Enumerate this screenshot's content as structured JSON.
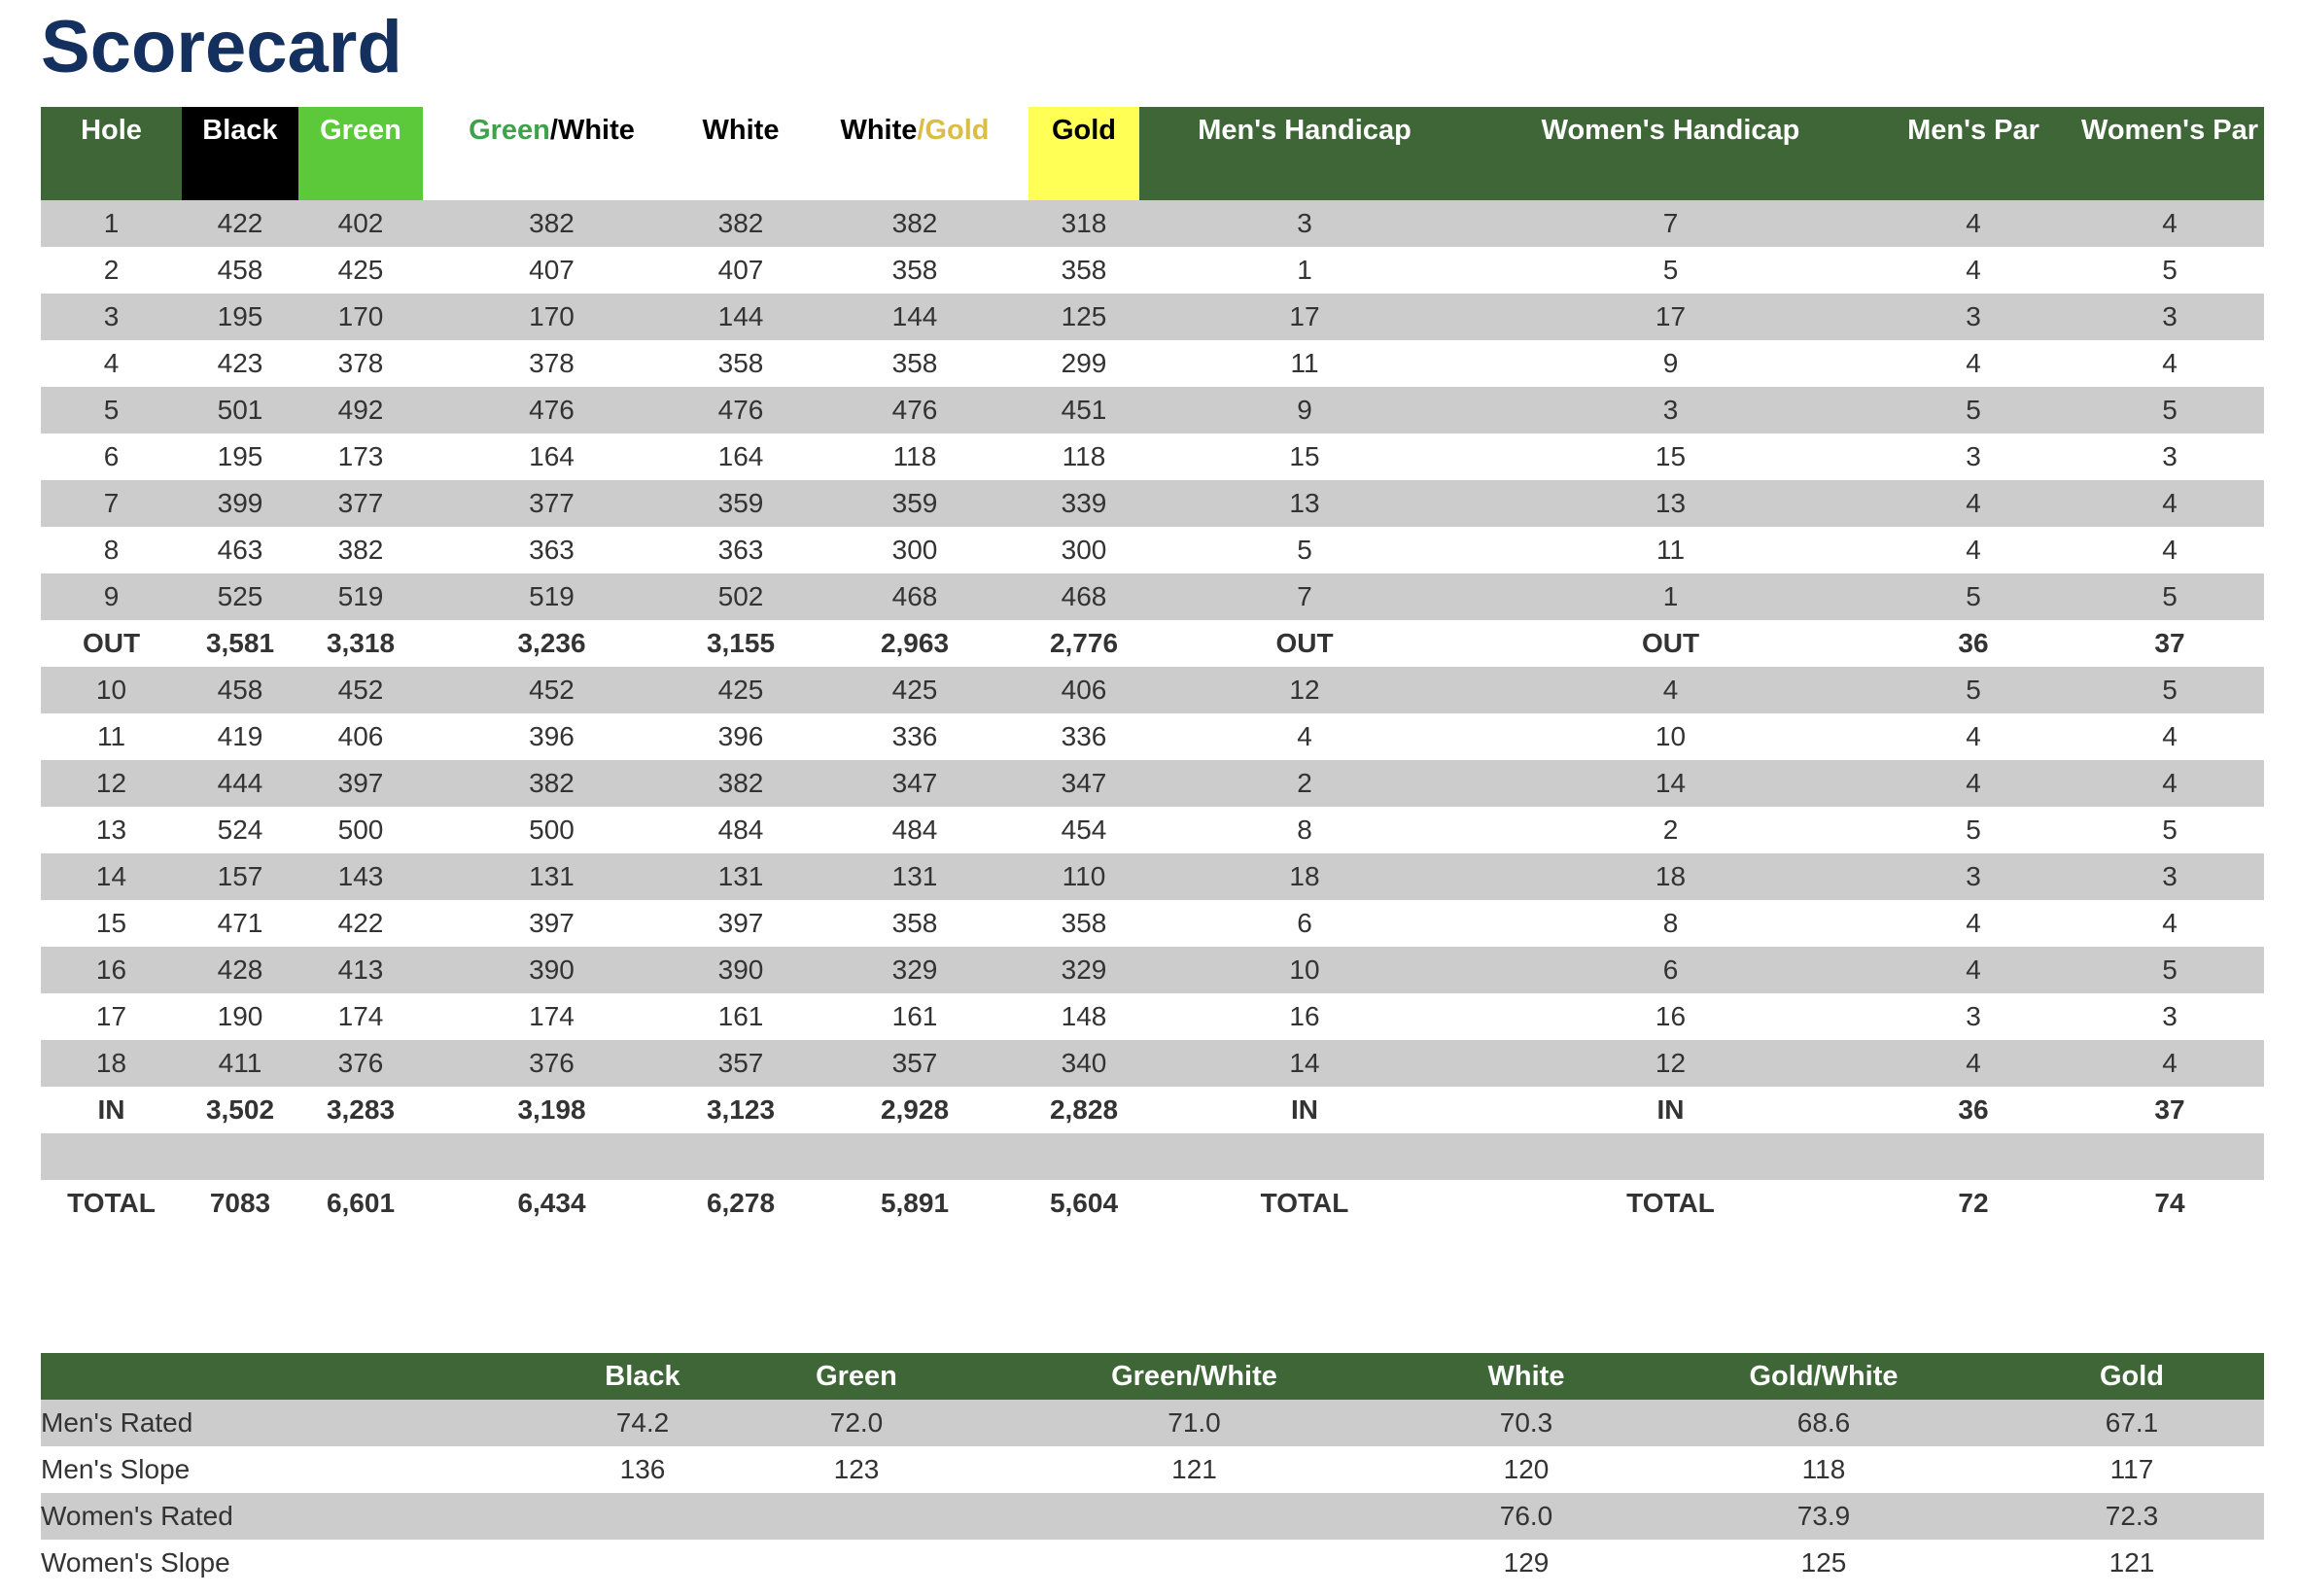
{
  "page": {
    "title": "Scorecard"
  },
  "scorecard": {
    "headers": {
      "hole": "Hole",
      "black": "Black",
      "green": "Green",
      "green_white": {
        "first": "Green",
        "sep": "/",
        "second": "White"
      },
      "white": "White",
      "white_gold": {
        "first": "White",
        "sep": "/",
        "second": "Gold"
      },
      "gold": "Gold",
      "mens_handicap": "Men's Handicap",
      "womens_handicap": "Women's Handicap",
      "mens_par": "Men's Par",
      "womens_par": "Women's Par"
    },
    "header_colors": {
      "dark_green": "#3e6637",
      "black": "#000000",
      "green": "#5cc93a",
      "gold_fill": "#ffff55",
      "green_text": "#3ea24a",
      "gold_text": "#dcbd44"
    },
    "rows": [
      {
        "type": "hole",
        "cells": [
          "1",
          "422",
          "402",
          "382",
          "382",
          "382",
          "318",
          "3",
          "7",
          "4",
          "4"
        ]
      },
      {
        "type": "hole",
        "cells": [
          "2",
          "458",
          "425",
          "407",
          "407",
          "358",
          "358",
          "1",
          "5",
          "4",
          "5"
        ]
      },
      {
        "type": "hole",
        "cells": [
          "3",
          "195",
          "170",
          "170",
          "144",
          "144",
          "125",
          "17",
          "17",
          "3",
          "3"
        ]
      },
      {
        "type": "hole",
        "cells": [
          "4",
          "423",
          "378",
          "378",
          "358",
          "358",
          "299",
          "11",
          "9",
          "4",
          "4"
        ]
      },
      {
        "type": "hole",
        "cells": [
          "5",
          "501",
          "492",
          "476",
          "476",
          "476",
          "451",
          "9",
          "3",
          "5",
          "5"
        ]
      },
      {
        "type": "hole",
        "cells": [
          "6",
          "195",
          "173",
          "164",
          "164",
          "118",
          "118",
          "15",
          "15",
          "3",
          "3"
        ]
      },
      {
        "type": "hole",
        "cells": [
          "7",
          "399",
          "377",
          "377",
          "359",
          "359",
          "339",
          "13",
          "13",
          "4",
          "4"
        ]
      },
      {
        "type": "hole",
        "cells": [
          "8",
          "463",
          "382",
          "363",
          "363",
          "300",
          "300",
          "5",
          "11",
          "4",
          "4"
        ]
      },
      {
        "type": "hole",
        "cells": [
          "9",
          "525",
          "519",
          "519",
          "502",
          "468",
          "468",
          "7",
          "1",
          "5",
          "5"
        ]
      },
      {
        "type": "total",
        "cells": [
          "OUT",
          "3,581",
          "3,318",
          "3,236",
          "3,155",
          "2,963",
          "2,776",
          "OUT",
          "OUT",
          "36",
          "37"
        ]
      },
      {
        "type": "hole",
        "cells": [
          "10",
          "458",
          "452",
          "452",
          "425",
          "425",
          "406",
          "12",
          "4",
          "5",
          "5"
        ]
      },
      {
        "type": "hole",
        "cells": [
          "11",
          "419",
          "406",
          "396",
          "396",
          "336",
          "336",
          "4",
          "10",
          "4",
          "4"
        ]
      },
      {
        "type": "hole",
        "cells": [
          "12",
          "444",
          "397",
          "382",
          "382",
          "347",
          "347",
          "2",
          "14",
          "4",
          "4"
        ]
      },
      {
        "type": "hole",
        "cells": [
          "13",
          "524",
          "500",
          "500",
          "484",
          "484",
          "454",
          "8",
          "2",
          "5",
          "5"
        ]
      },
      {
        "type": "hole",
        "cells": [
          "14",
          "157",
          "143",
          "131",
          "131",
          "131",
          "110",
          "18",
          "18",
          "3",
          "3"
        ]
      },
      {
        "type": "hole",
        "cells": [
          "15",
          "471",
          "422",
          "397",
          "397",
          "358",
          "358",
          "6",
          "8",
          "4",
          "4"
        ]
      },
      {
        "type": "hole",
        "cells": [
          "16",
          "428",
          "413",
          "390",
          "390",
          "329",
          "329",
          "10",
          "6",
          "4",
          "5"
        ]
      },
      {
        "type": "hole",
        "cells": [
          "17",
          "190",
          "174",
          "174",
          "161",
          "161",
          "148",
          "16",
          "16",
          "3",
          "3"
        ]
      },
      {
        "type": "hole",
        "cells": [
          "18",
          "411",
          "376",
          "376",
          "357",
          "357",
          "340",
          "14",
          "12",
          "4",
          "4"
        ]
      },
      {
        "type": "total",
        "cells": [
          "IN",
          "3,502",
          "3,283",
          "3,198",
          "3,123",
          "2,928",
          "2,828",
          "IN",
          "IN",
          "36",
          "37"
        ]
      },
      {
        "type": "blank",
        "cells": [
          "",
          "",
          "",
          "",
          "",
          "",
          "",
          "",
          "",
          "",
          ""
        ]
      },
      {
        "type": "total",
        "cells": [
          "TOTAL",
          "7083",
          "6,601",
          "6,434",
          "6,278",
          "5,891",
          "5,604",
          "TOTAL",
          "TOTAL",
          "72",
          "74"
        ]
      }
    ]
  },
  "ratings": {
    "headers": [
      "",
      "Black",
      "Green",
      "Green/White",
      "White",
      "Gold/White",
      "Gold"
    ],
    "rows": [
      {
        "label": "Men's Rated",
        "values": [
          "74.2",
          "72.0",
          "71.0",
          "70.3",
          "68.6",
          "67.1"
        ]
      },
      {
        "label": "Men's Slope",
        "values": [
          "136",
          "123",
          "121",
          "120",
          "118",
          "117"
        ]
      },
      {
        "label": "Women's Rated",
        "values": [
          "",
          "",
          "",
          "76.0",
          "73.9",
          "72.3"
        ]
      },
      {
        "label": "Women's Slope",
        "values": [
          "",
          "",
          "",
          "129",
          "125",
          "121"
        ]
      }
    ]
  }
}
